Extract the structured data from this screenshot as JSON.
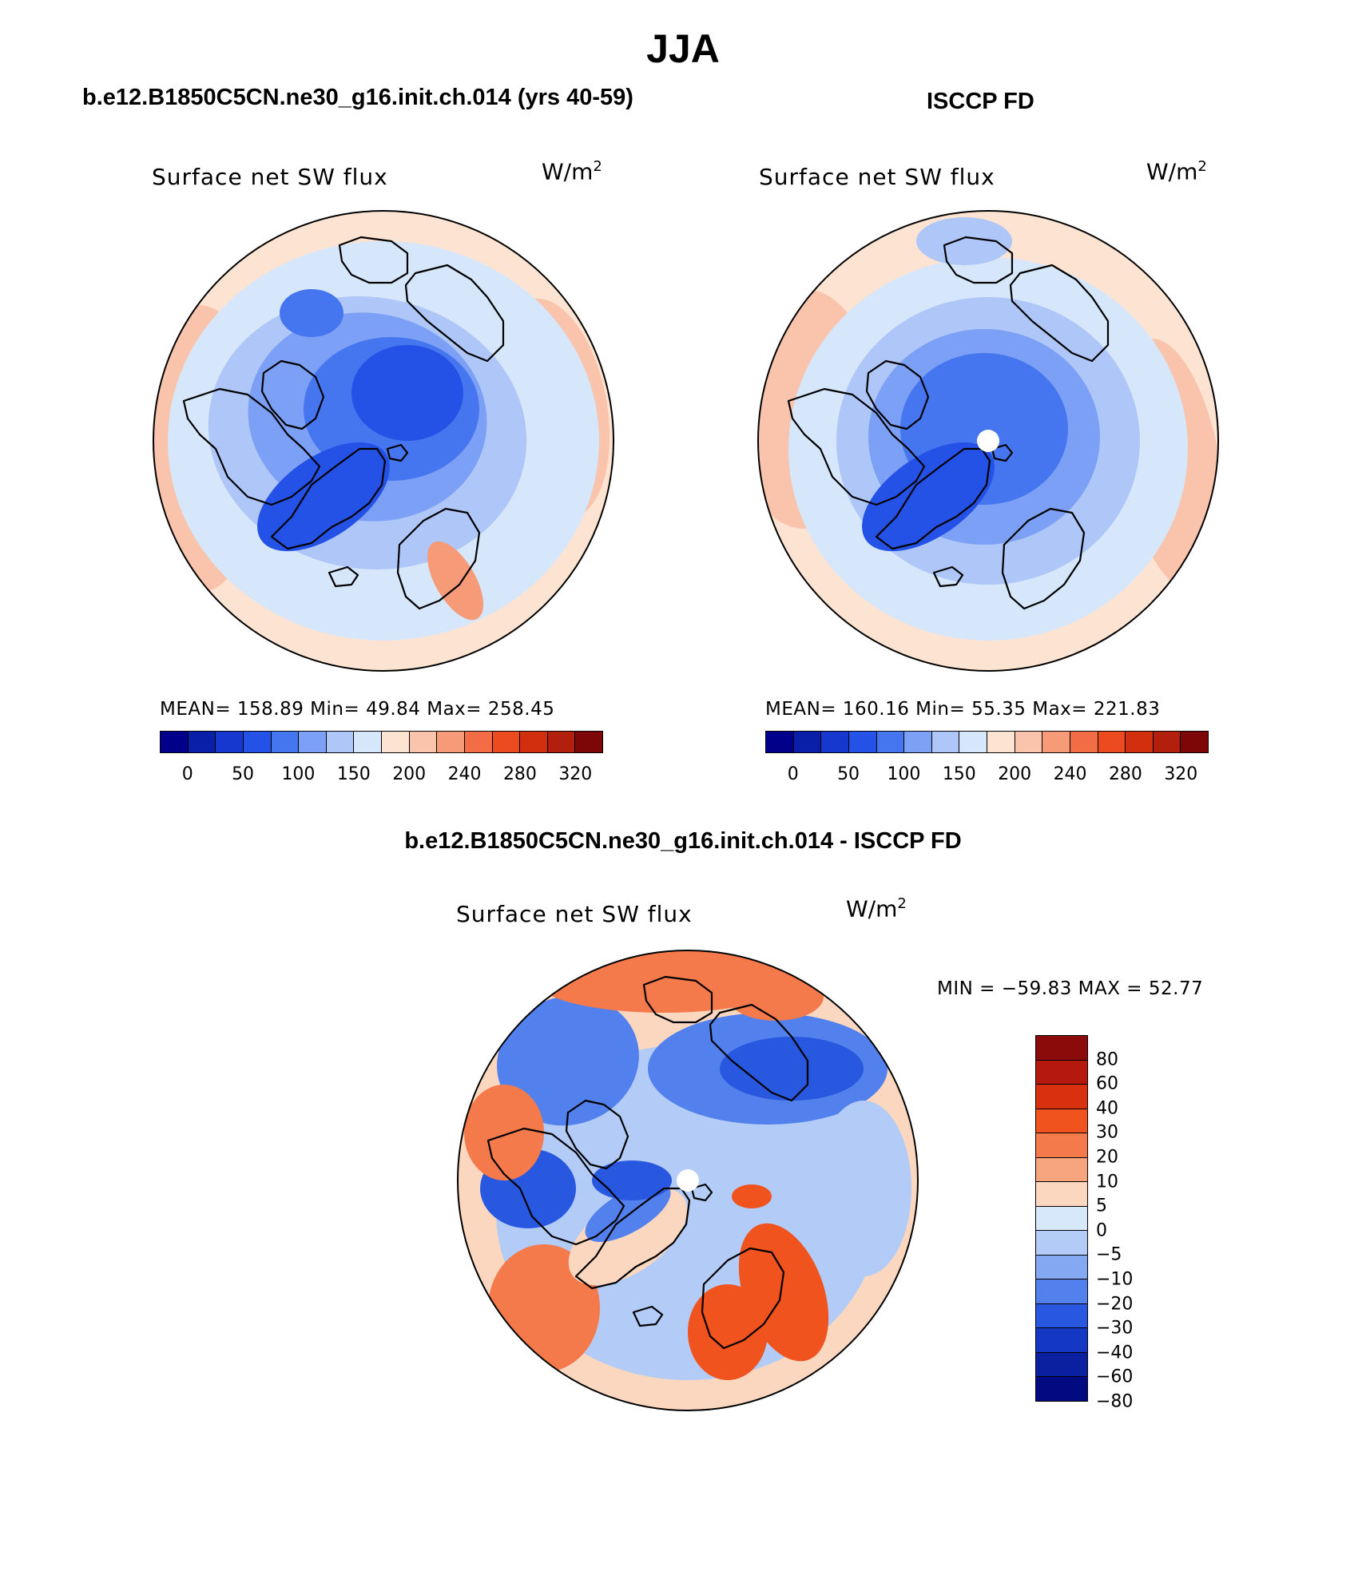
{
  "season": "JJA",
  "panels": {
    "model": {
      "heading": "b.e12.B1850C5CN.ne30_g16.init.ch.014 (yrs 40-59)",
      "variable": "Surface net SW flux",
      "units": "W/m",
      "units_exp": "2",
      "stats": "MEAN= 158.89   Min=   49.84   Max= 258.45"
    },
    "obs": {
      "heading": "ISCCP FD",
      "variable": "Surface net SW flux",
      "units": "W/m",
      "units_exp": "2",
      "stats": "MEAN= 160.16   Min=   55.35   Max= 221.83"
    },
    "diff": {
      "heading": "b.e12.B1850C5CN.ne30_g16.init.ch.014 - ISCCP FD",
      "variable": "Surface net SW flux",
      "units": "W/m",
      "units_exp": "2",
      "stats": "MIN = −59.83 MAX =   52.77"
    }
  },
  "colorbar_abs": {
    "colors": [
      "#00008b",
      "#0a1fa8",
      "#1638cf",
      "#2452e6",
      "#4676ef",
      "#7ba0f5",
      "#aec6f8",
      "#d6e6fb",
      "#fde4d2",
      "#fac3ab",
      "#f69a78",
      "#f26d45",
      "#ec4a1f",
      "#d22f0f",
      "#b21f0c",
      "#7d0606"
    ],
    "labels": [
      "0",
      "50",
      "100",
      "150",
      "200",
      "240",
      "280",
      "320"
    ]
  },
  "colorbar_diff": {
    "colors": [
      "#8b0a0a",
      "#b5190e",
      "#d9310f",
      "#f0531e",
      "#f47a4c",
      "#f6a57f",
      "#fbd7c0",
      "#d8e8fb",
      "#b2cbf7",
      "#84a8f2",
      "#5280ec",
      "#2857e0",
      "#1438c4",
      "#0b20a0",
      "#010a80"
    ],
    "labels": [
      "80",
      "60",
      "40",
      "30",
      "20",
      "10",
      "5",
      "0",
      "−5",
      "−10",
      "−20",
      "−30",
      "−40",
      "−60",
      "−80"
    ]
  },
  "chart_data": [
    {
      "type": "heatmap",
      "title": "Surface net SW flux",
      "subtitle": "b.e12.B1850C5CN.ne30_g16.init.ch.014 (yrs 40-59)",
      "units": "W/m2",
      "mean": 158.89,
      "min": 49.84,
      "max": 258.45,
      "levels": [
        0,
        50,
        100,
        150,
        200,
        240,
        280,
        320
      ]
    },
    {
      "type": "heatmap",
      "title": "Surface net SW flux",
      "subtitle": "ISCCP FD",
      "units": "W/m2",
      "mean": 160.16,
      "min": 55.35,
      "max": 221.83,
      "levels": [
        0,
        50,
        100,
        150,
        200,
        240,
        280,
        320
      ]
    },
    {
      "type": "heatmap",
      "title": "Surface net SW flux",
      "subtitle": "b.e12.B1850C5CN.ne30_g16.init.ch.014 - ISCCP FD",
      "units": "W/m2",
      "min": -59.83,
      "max": 52.77,
      "levels": [
        -80,
        -60,
        -40,
        -30,
        -20,
        -10,
        -5,
        0,
        5,
        10,
        20,
        30,
        40,
        60,
        80
      ]
    }
  ]
}
